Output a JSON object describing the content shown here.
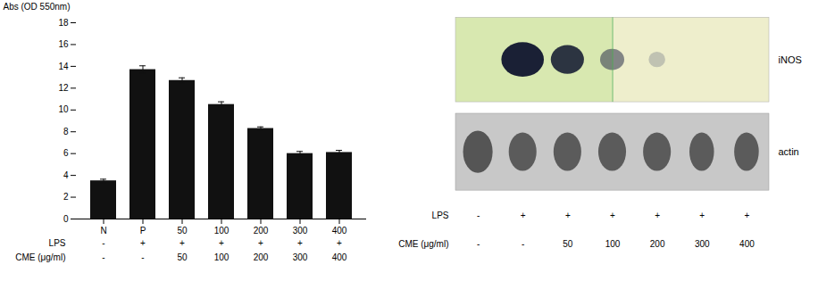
{
  "chart_data": [
    {
      "type": "bar",
      "categories": [
        "N",
        "P",
        "50",
        "100",
        "200",
        "300",
        "400"
      ],
      "values": [
        3.5,
        13.7,
        12.7,
        10.5,
        8.3,
        6.0,
        6.1
      ],
      "errors": [
        0.15,
        0.35,
        0.25,
        0.25,
        0.15,
        0.2,
        0.2
      ],
      "color": "#111111",
      "ylabel": "Abs (OD 550nm)",
      "ylim": [
        0,
        18
      ],
      "yticks": [
        0,
        2,
        4,
        6,
        8,
        10,
        12,
        14,
        16,
        18
      ],
      "grid": false,
      "rows": [
        {
          "label": "LPS",
          "values": [
            "-",
            "+",
            "+",
            "+",
            "+",
            "+",
            "+"
          ]
        },
        {
          "label": "CME (μg/ml)",
          "values": [
            "-",
            "-",
            "50",
            "100",
            "200",
            "300",
            "400"
          ]
        }
      ]
    },
    {
      "type": "blot",
      "bands": [
        "iNOS",
        "actin"
      ],
      "rows": [
        {
          "label": "LPS",
          "values": [
            "-",
            "+",
            "+",
            "+",
            "+",
            "+",
            "+"
          ]
        },
        {
          "label": "CME (μg/ml)",
          "values": [
            "-",
            "-",
            "50",
            "100",
            "200",
            "300",
            "400"
          ]
        }
      ]
    }
  ]
}
